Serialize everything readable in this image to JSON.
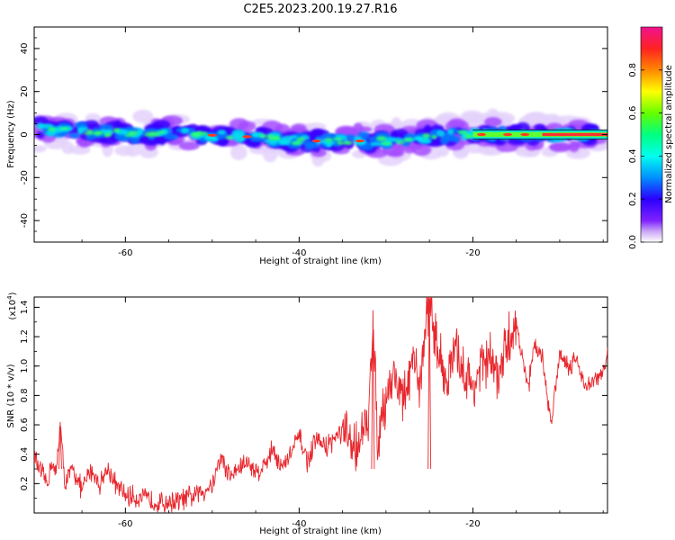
{
  "title": "C2E5.2023.200.19.27.R16",
  "chart_data": [
    {
      "type": "heatmap",
      "xlabel": "Height of straight line (km)",
      "ylabel": "Frequency (Hz)",
      "xlim": [
        -70.5,
        -4.5
      ],
      "ylim": [
        -50,
        50
      ],
      "xticks": [
        "-60",
        "-40",
        "-20"
      ],
      "yticks": [
        "40",
        "20",
        "0",
        "-20",
        "-40"
      ],
      "colorbar": {
        "label": "Normalized spectral amplitude",
        "range": [
          0,
          1
        ],
        "ticks": [
          "0.0",
          "0.2",
          "0.4",
          "0.6",
          "0.8"
        ]
      },
      "ridge": [
        {
          "x": -70,
          "y": 2.5
        },
        {
          "x": -66,
          "y": 2
        },
        {
          "x": -62,
          "y": 1
        },
        {
          "x": -58,
          "y": 0
        },
        {
          "x": -55,
          "y": 1
        },
        {
          "x": -52,
          "y": 0
        },
        {
          "x": -49,
          "y": -0.5
        },
        {
          "x": -46,
          "y": -1
        },
        {
          "x": -43,
          "y": -2
        },
        {
          "x": -40,
          "y": -3
        },
        {
          "x": -37,
          "y": -3
        },
        {
          "x": -34,
          "y": -3
        },
        {
          "x": -31,
          "y": -3
        },
        {
          "x": -28,
          "y": -3
        },
        {
          "x": -25,
          "y": -1
        },
        {
          "x": -22,
          "y": 0
        },
        {
          "x": -18,
          "y": 0
        },
        {
          "x": -14,
          "y": 0
        },
        {
          "x": -10,
          "y": 0
        },
        {
          "x": -5,
          "y": 0
        }
      ]
    },
    {
      "type": "line",
      "xlabel": "Height of straight line (km)",
      "ylabel": "SNR (10 * v/v)",
      "scale_label": "(x10",
      "scale_exponent": "4",
      "xlim": [
        -70.5,
        -4.5
      ],
      "ylim": [
        0,
        1.47
      ],
      "xticks": [
        "-60",
        "-40",
        "-20"
      ],
      "yticks": [
        "0.2",
        "0.4",
        "0.6",
        "0.8",
        "1.0",
        "1.2",
        "1.4"
      ],
      "color": "#e8262c",
      "x": [
        -70.5,
        -70,
        -69,
        -68.5,
        -68,
        -67.5,
        -67,
        -66,
        -65,
        -64,
        -63,
        -62,
        -61,
        -60,
        -58,
        -56,
        -54,
        -52,
        -51,
        -50,
        -49,
        -48,
        -47,
        -46,
        -45,
        -44,
        -43,
        -42,
        -41,
        -40,
        -39,
        -38,
        -37,
        -36,
        -35,
        -34,
        -33,
        -32,
        -31.5,
        -31,
        -30,
        -29,
        -28,
        -27,
        -26,
        -25.5,
        -25,
        -24,
        -23,
        -22,
        -21,
        -20,
        -19,
        -18,
        -17,
        -16,
        -15,
        -14,
        -13.5,
        -13,
        -12,
        -11,
        -10,
        -9,
        -8,
        -7,
        -6,
        -5,
        -4.5
      ],
      "y": [
        0.4,
        0.3,
        0.2,
        0.35,
        0.25,
        0.62,
        0.2,
        0.3,
        0.15,
        0.3,
        0.2,
        0.3,
        0.18,
        0.12,
        0.1,
        0.07,
        0.08,
        0.12,
        0.15,
        0.2,
        0.38,
        0.25,
        0.3,
        0.35,
        0.28,
        0.32,
        0.45,
        0.3,
        0.4,
        0.52,
        0.35,
        0.5,
        0.45,
        0.5,
        0.55,
        0.45,
        0.5,
        0.6,
        1.38,
        0.5,
        0.8,
        0.95,
        0.75,
        1.0,
        0.9,
        1.25,
        1.45,
        1.1,
        0.9,
        1.1,
        0.95,
        0.85,
        1.0,
        1.05,
        0.9,
        1.15,
        1.3,
        0.95,
        0.9,
        1.15,
        1.05,
        0.6,
        1.1,
        1.0,
        1.05,
        0.85,
        0.9,
        0.95,
        1.1
      ]
    }
  ]
}
